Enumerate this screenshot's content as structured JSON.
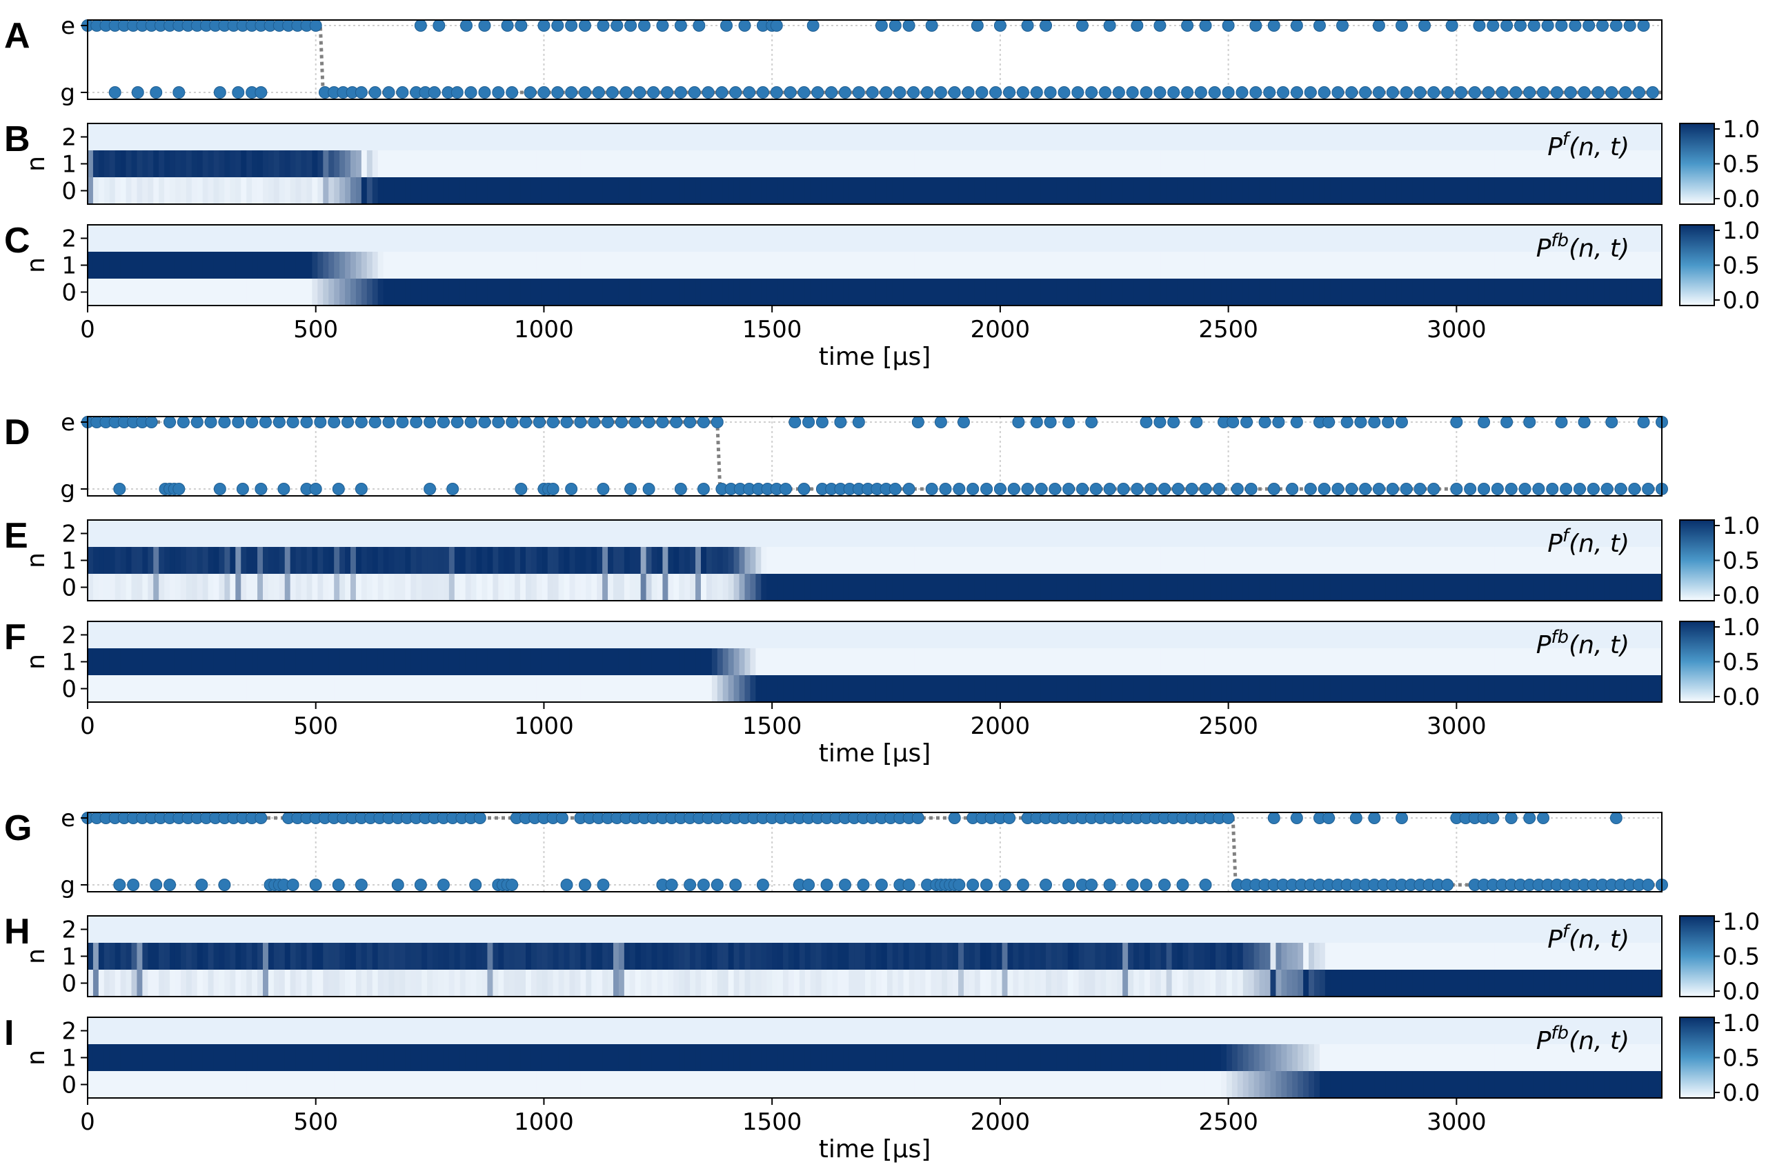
{
  "colors": {
    "dot": "#2d79b5",
    "dark": "#08306b",
    "light": "#eef5fc",
    "grid": "#cfcfcf"
  },
  "chart_data": [
    {
      "id": "run1",
      "type": "composite",
      "xlabel": "time [μs]",
      "xlim": [
        0,
        3450
      ],
      "xticks": [
        0,
        500,
        1000,
        1500,
        2000,
        2500,
        3000
      ],
      "jump_time": 510,
      "cbar_ticks": [
        "1.0",
        "0.5",
        "0.0"
      ],
      "panels": [
        {
          "label": "A",
          "type": "scatter",
          "ylabels": [
            "e",
            "g"
          ],
          "e_x": [
            0,
            20,
            40,
            60,
            80,
            100,
            120,
            140,
            160,
            180,
            200,
            220,
            240,
            260,
            280,
            300,
            320,
            340,
            360,
            380,
            400,
            420,
            440,
            460,
            480,
            500,
            730,
            770,
            830,
            870,
            920,
            950,
            1000,
            1030,
            1060,
            1090,
            1130,
            1160,
            1190,
            1220,
            1260,
            1300,
            1340,
            1400,
            1440,
            1480,
            1500,
            1510,
            1590,
            1740,
            1770,
            1800,
            1850,
            1950,
            2000,
            2060,
            2100,
            2180,
            2240,
            2300,
            2350,
            2410,
            2450,
            2500,
            2560,
            2600,
            2650,
            2700,
            2750,
            2830,
            2880,
            2930,
            2990,
            3050,
            3080,
            3110,
            3140,
            3170,
            3200,
            3230,
            3260,
            3290,
            3320,
            3350,
            3380,
            3410
          ],
          "g_x": [
            60,
            110,
            150,
            200,
            290,
            330,
            360,
            380,
            520,
            540,
            560,
            580,
            600,
            630,
            660,
            690,
            720,
            740,
            760,
            790,
            810,
            840,
            870,
            900,
            930,
            970,
            1000,
            1030,
            1060,
            1090,
            1120,
            1150,
            1180,
            1210,
            1240,
            1270,
            1300,
            1330,
            1360,
            1390,
            1420,
            1450,
            1480,
            1510,
            1540,
            1570,
            1600,
            1630,
            1660,
            1690,
            1720,
            1750,
            1780,
            1810,
            1840,
            1870,
            1900,
            1930,
            1960,
            1990,
            2020,
            2050,
            2080,
            2110,
            2140,
            2170,
            2200,
            2230,
            2260,
            2290,
            2320,
            2350,
            2380,
            2410,
            2440,
            2470,
            2500,
            2530,
            2560,
            2590,
            2620,
            2650,
            2680,
            2710,
            2740,
            2770,
            2800,
            2830,
            2860,
            2890,
            2920,
            2950,
            2980,
            3010,
            3040,
            3070,
            3100,
            3130,
            3160,
            3190,
            3220,
            3250,
            3280,
            3310,
            3340,
            3370,
            3400,
            3430
          ]
        },
        {
          "label": "B",
          "type": "heatmap",
          "ylabel": "n",
          "yticks": [
            "2",
            "1",
            "0"
          ],
          "annotation": "f",
          "ann_suffix": "(n, t)",
          "transition": [
            510,
            640
          ],
          "flicker": true
        },
        {
          "label": "C",
          "type": "heatmap",
          "ylabel": "n",
          "yticks": [
            "2",
            "1",
            "0"
          ],
          "annotation": "fb",
          "ann_suffix": "(n, t)",
          "transition": [
            480,
            640
          ],
          "flicker": false
        }
      ]
    },
    {
      "id": "run2",
      "type": "composite",
      "xlabel": "time [μs]",
      "xlim": [
        0,
        3450
      ],
      "xticks": [
        0,
        500,
        1000,
        1500,
        2000,
        2500,
        3000
      ],
      "jump_time": 1380,
      "cbar_ticks": [
        "1.0",
        "0.5",
        "0.0"
      ],
      "panels": [
        {
          "label": "D",
          "type": "scatter",
          "ylabels": [
            "e",
            "g"
          ],
          "e_x": [
            0,
            20,
            40,
            60,
            80,
            100,
            120,
            140,
            180,
            210,
            240,
            270,
            300,
            330,
            360,
            390,
            420,
            450,
            480,
            510,
            540,
            570,
            600,
            630,
            660,
            690,
            720,
            750,
            780,
            810,
            840,
            870,
            900,
            930,
            960,
            990,
            1020,
            1050,
            1080,
            1110,
            1140,
            1170,
            1200,
            1230,
            1260,
            1290,
            1320,
            1350,
            1380,
            1550,
            1580,
            1610,
            1650,
            1690,
            1820,
            1870,
            1920,
            2040,
            2080,
            2110,
            2150,
            2200,
            2320,
            2350,
            2380,
            2430,
            2490,
            2510,
            2540,
            2580,
            2610,
            2650,
            2700,
            2720,
            2760,
            2790,
            2820,
            2850,
            2880,
            3000,
            3060,
            3110,
            3160,
            3230,
            3280,
            3340,
            3410,
            3450
          ],
          "g_x": [
            70,
            170,
            180,
            190,
            200,
            290,
            340,
            380,
            430,
            480,
            500,
            550,
            600,
            750,
            800,
            950,
            1000,
            1010,
            1020,
            1060,
            1130,
            1190,
            1230,
            1300,
            1350,
            1390,
            1410,
            1430,
            1450,
            1470,
            1490,
            1510,
            1530,
            1570,
            1610,
            1630,
            1650,
            1670,
            1690,
            1710,
            1730,
            1750,
            1770,
            1800,
            1850,
            1880,
            1910,
            1940,
            1970,
            2000,
            2030,
            2060,
            2090,
            2120,
            2150,
            2180,
            2210,
            2240,
            2270,
            2300,
            2330,
            2360,
            2390,
            2420,
            2450,
            2480,
            2520,
            2550,
            2600,
            2640,
            2680,
            2710,
            2740,
            2770,
            2800,
            2830,
            2860,
            2890,
            2920,
            2950,
            3000,
            3030,
            3060,
            3090,
            3120,
            3150,
            3180,
            3210,
            3240,
            3270,
            3300,
            3330,
            3360,
            3390,
            3420,
            3450
          ]
        },
        {
          "label": "E",
          "type": "heatmap",
          "ylabel": "n",
          "yticks": [
            "2",
            "1",
            "0"
          ],
          "annotation": "f",
          "ann_suffix": "(n, t)",
          "transition": [
            1400,
            1480
          ],
          "flicker": true
        },
        {
          "label": "F",
          "type": "heatmap",
          "ylabel": "n",
          "yticks": [
            "2",
            "1",
            "0"
          ],
          "annotation": "fb",
          "ann_suffix": "(n, t)",
          "transition": [
            1360,
            1460
          ],
          "flicker": false
        }
      ]
    },
    {
      "id": "run3",
      "type": "composite",
      "xlabel": "time [μs]",
      "xlim": [
        0,
        3450
      ],
      "xticks": [
        0,
        500,
        1000,
        1500,
        2000,
        2500,
        3000
      ],
      "jump_time": 2510,
      "cbar_ticks": [
        "1.0",
        "0.5",
        "0.0"
      ],
      "panels": [
        {
          "label": "G",
          "type": "scatter",
          "ylabels": [
            "e",
            "g"
          ],
          "e_x": [
            0,
            20,
            40,
            60,
            80,
            100,
            120,
            140,
            160,
            180,
            200,
            220,
            240,
            260,
            280,
            300,
            320,
            340,
            360,
            380,
            440,
            460,
            480,
            500,
            520,
            540,
            560,
            580,
            600,
            620,
            640,
            660,
            680,
            700,
            720,
            740,
            760,
            780,
            800,
            820,
            840,
            860,
            940,
            960,
            980,
            1000,
            1020,
            1040,
            1080,
            1100,
            1120,
            1140,
            1160,
            1180,
            1200,
            1220,
            1240,
            1260,
            1280,
            1300,
            1320,
            1340,
            1360,
            1380,
            1400,
            1420,
            1440,
            1460,
            1480,
            1500,
            1520,
            1540,
            1560,
            1580,
            1600,
            1620,
            1640,
            1660,
            1680,
            1700,
            1720,
            1740,
            1760,
            1780,
            1800,
            1820,
            1900,
            1940,
            1960,
            1980,
            2000,
            2020,
            2060,
            2080,
            2100,
            2120,
            2140,
            2160,
            2180,
            2200,
            2220,
            2240,
            2260,
            2280,
            2300,
            2320,
            2340,
            2360,
            2380,
            2400,
            2420,
            2440,
            2460,
            2480,
            2500,
            2600,
            2650,
            2700,
            2720,
            2780,
            2820,
            2880,
            3000,
            3020,
            3040,
            3060,
            3080,
            3120,
            3160,
            3190,
            3350
          ],
          "g_x": [
            70,
            100,
            150,
            180,
            250,
            300,
            400,
            410,
            420,
            430,
            450,
            500,
            550,
            600,
            680,
            730,
            780,
            850,
            900,
            910,
            920,
            930,
            1050,
            1090,
            1130,
            1260,
            1280,
            1320,
            1350,
            1380,
            1420,
            1480,
            1560,
            1580,
            1620,
            1660,
            1700,
            1740,
            1780,
            1800,
            1840,
            1860,
            1870,
            1880,
            1890,
            1900,
            1910,
            1940,
            1970,
            2010,
            2050,
            2100,
            2150,
            2180,
            2200,
            2240,
            2290,
            2320,
            2360,
            2400,
            2450,
            2520,
            2540,
            2560,
            2580,
            2600,
            2620,
            2640,
            2660,
            2680,
            2700,
            2720,
            2740,
            2760,
            2780,
            2800,
            2820,
            2840,
            2860,
            2880,
            2900,
            2920,
            2940,
            2960,
            2980,
            3040,
            3060,
            3080,
            3100,
            3120,
            3140,
            3160,
            3180,
            3200,
            3220,
            3240,
            3260,
            3280,
            3300,
            3320,
            3340,
            3360,
            3380,
            3400,
            3420,
            3450
          ]
        },
        {
          "label": "H",
          "type": "heatmap",
          "ylabel": "n",
          "yticks": [
            "2",
            "1",
            "0"
          ],
          "annotation": "f",
          "ann_suffix": "(n, t)",
          "transition": [
            2520,
            2720
          ],
          "flicker": true
        },
        {
          "label": "I",
          "type": "heatmap",
          "ylabel": "n",
          "yticks": [
            "2",
            "1",
            "0"
          ],
          "annotation": "fb",
          "ann_suffix": "(n, t)",
          "transition": [
            2480,
            2700
          ],
          "flicker": false
        }
      ]
    }
  ]
}
